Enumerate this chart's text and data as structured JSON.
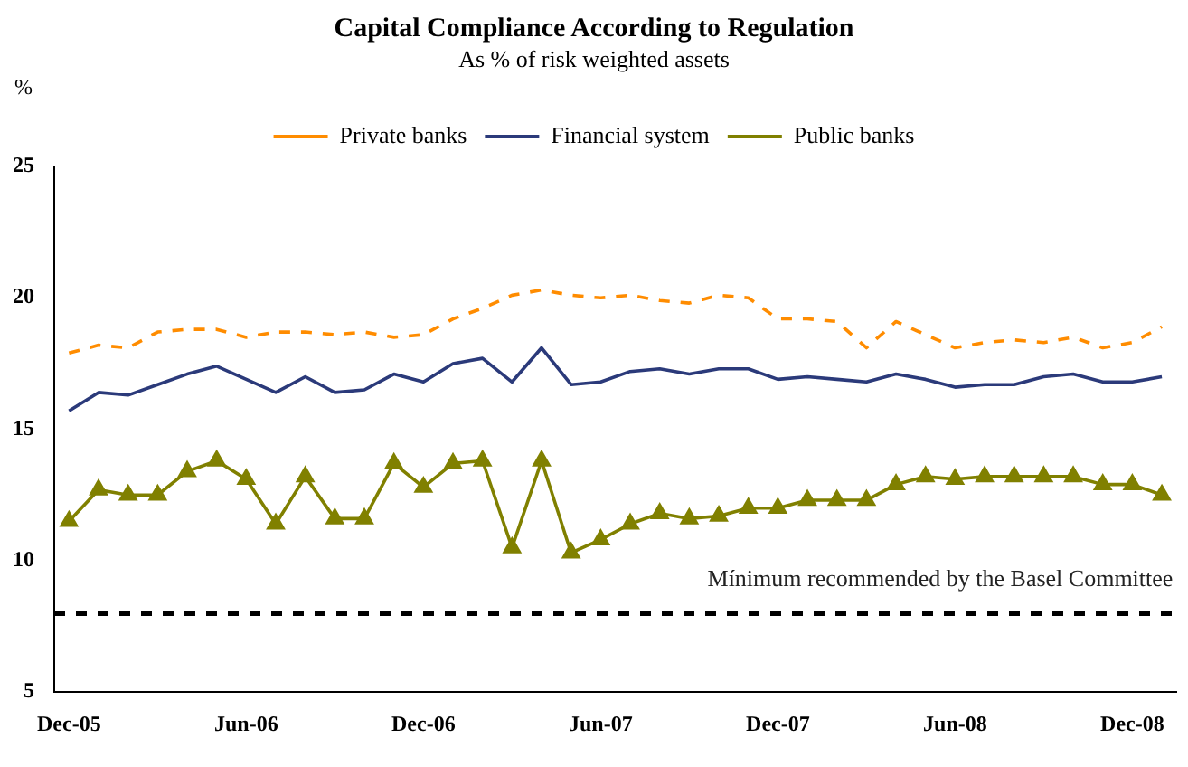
{
  "chart_data": {
    "type": "line",
    "title": "Capital Compliance According to Regulation",
    "subtitle": "As % of risk weighted assets",
    "ylabel": "%",
    "categories": [
      "Dec-05",
      null,
      null,
      null,
      null,
      null,
      "Jun-06",
      null,
      null,
      null,
      null,
      null,
      "Dec-06",
      null,
      null,
      null,
      null,
      null,
      "Jun-07",
      null,
      null,
      null,
      null,
      null,
      "Dec-07",
      null,
      null,
      null,
      null,
      null,
      "Jun-08",
      null,
      null,
      null,
      null,
      null,
      "Dec-08",
      null
    ],
    "series": [
      {
        "name": "Private banks",
        "color": "#ff8c00",
        "line_style": "dashed",
        "marker": "none",
        "values": [
          17.9,
          18.2,
          18.1,
          18.7,
          18.8,
          18.8,
          18.5,
          18.7,
          18.7,
          18.6,
          18.7,
          18.5,
          18.6,
          19.2,
          19.6,
          20.1,
          20.3,
          20.1,
          20.0,
          20.1,
          19.9,
          19.8,
          20.1,
          20.0,
          19.2,
          19.2,
          19.1,
          18.1,
          19.1,
          18.6,
          18.1,
          18.3,
          18.4,
          18.3,
          18.5,
          18.1,
          18.3,
          18.9
        ]
      },
      {
        "name": "Financial system",
        "color": "#2b3a7a",
        "line_style": "solid",
        "marker": "none",
        "values": [
          15.7,
          16.4,
          16.3,
          16.7,
          17.1,
          17.4,
          16.9,
          16.4,
          17.0,
          16.4,
          16.5,
          17.1,
          16.8,
          17.5,
          17.7,
          16.8,
          18.1,
          16.7,
          16.8,
          17.2,
          17.3,
          17.1,
          17.3,
          17.3,
          16.9,
          17.0,
          16.9,
          16.8,
          17.1,
          16.9,
          16.6,
          16.7,
          16.7,
          17.0,
          17.1,
          16.8,
          16.8,
          17.0
        ]
      },
      {
        "name": "Public banks",
        "color": "#808000",
        "line_style": "solid",
        "marker": "triangle",
        "values": [
          11.5,
          12.7,
          12.5,
          12.5,
          13.4,
          13.8,
          13.1,
          11.4,
          13.2,
          11.6,
          11.6,
          13.7,
          12.8,
          13.7,
          13.8,
          10.5,
          13.8,
          10.3,
          10.8,
          11.4,
          11.8,
          11.6,
          11.7,
          12.0,
          12.0,
          12.3,
          12.3,
          12.3,
          12.9,
          13.2,
          13.1,
          13.2,
          13.2,
          13.2,
          13.2,
          12.9,
          12.9,
          12.5
        ]
      }
    ],
    "ylim": [
      5,
      25
    ],
    "yticks": [
      5,
      10,
      15,
      20,
      25
    ],
    "grid": false,
    "legend": "top",
    "ref_lines": [
      {
        "axis": "y",
        "value": 8,
        "label": "Mínimum recommended by the Basel Committee",
        "color": "#000000",
        "line_style": "dashed"
      }
    ]
  }
}
